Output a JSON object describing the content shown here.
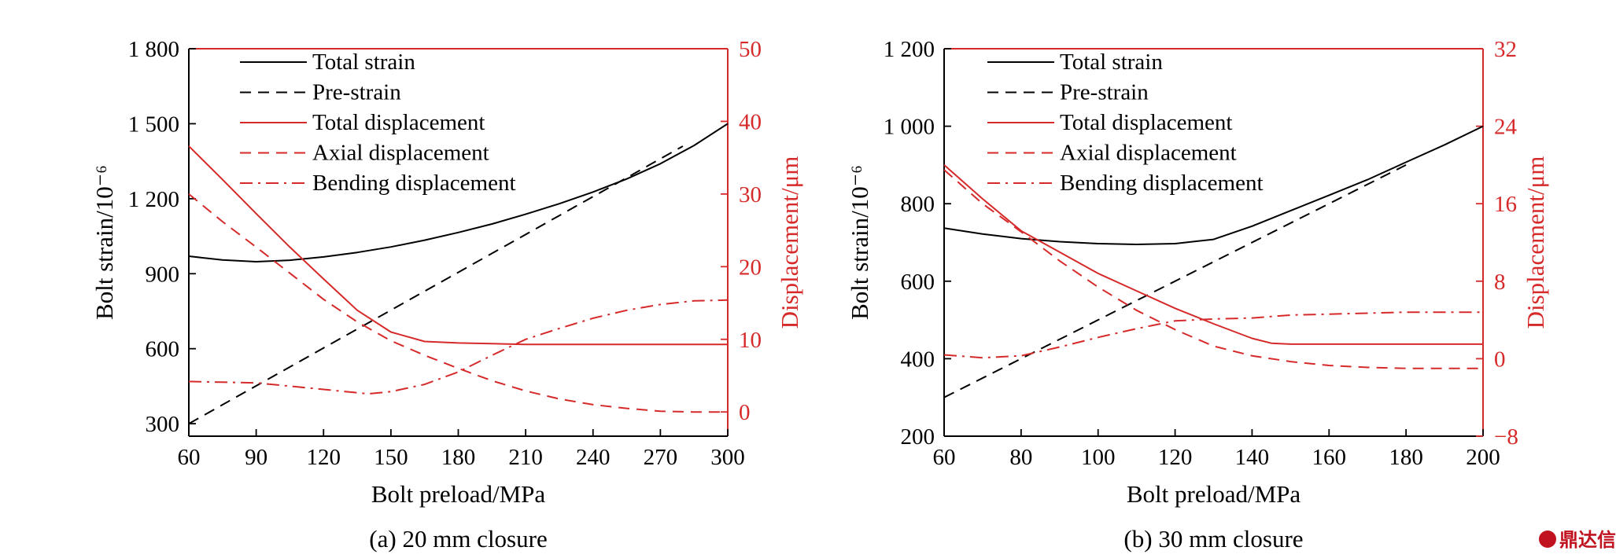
{
  "watermark": {
    "text": "鼎达信",
    "color": "#c1121f"
  },
  "colors": {
    "black": "#000000",
    "red": "#d62a2a"
  },
  "chart_data": [
    {
      "type": "line",
      "caption": "(a) 20 mm closure",
      "xlabel": "Bolt preload/MPa",
      "ylabel_left": "Bolt strain/10⁻⁶",
      "ylabel_right": "Displacement/μm",
      "xlim": [
        60,
        300
      ],
      "ylim_left": [
        250,
        1800
      ],
      "ylim_right": [
        -3.333,
        50
      ],
      "x_ticks": [
        "60",
        "90",
        "120",
        "150",
        "180",
        "210",
        "240",
        "270",
        "300"
      ],
      "y_left_ticks": [
        "300",
        "600",
        "900",
        "1 200",
        "1 500",
        "1 800"
      ],
      "y_right_ticks": [
        "0",
        "10",
        "20",
        "30",
        "40",
        "50"
      ],
      "legend_position": "top-left",
      "series": [
        {
          "name": "Total strain",
          "axis": "left",
          "color": "black",
          "dash": "solid",
          "x": [
            60,
            75,
            90,
            105,
            120,
            135,
            150,
            165,
            180,
            195,
            210,
            225,
            240,
            255,
            270,
            285,
            300
          ],
          "y": [
            970,
            955,
            948,
            954,
            967,
            985,
            1007,
            1034,
            1065,
            1099,
            1138,
            1180,
            1227,
            1279,
            1340,
            1413,
            1500
          ]
        },
        {
          "name": "Pre-strain",
          "axis": "left",
          "color": "black",
          "dash": "dash",
          "x": [
            60,
            280
          ],
          "y": [
            300,
            1410
          ]
        },
        {
          "name": "Total displacement",
          "axis": "right",
          "color": "red",
          "dash": "solid",
          "x": [
            60,
            75,
            90,
            105,
            120,
            135,
            150,
            165,
            180,
            195,
            210,
            240,
            270,
            300
          ],
          "y": [
            36.6,
            32.0,
            27.3,
            22.7,
            18.3,
            14.0,
            11.0,
            9.7,
            9.5,
            9.4,
            9.3,
            9.3,
            9.3,
            9.3
          ]
        },
        {
          "name": "Axial displacement",
          "axis": "right",
          "color": "red",
          "dash": "dash",
          "x": [
            60,
            75,
            90,
            105,
            120,
            135,
            150,
            165,
            180,
            195,
            210,
            225,
            240,
            255,
            270,
            285,
            300
          ],
          "y": [
            30.0,
            26.2,
            22.7,
            19.1,
            15.5,
            12.4,
            9.8,
            7.8,
            6.0,
            4.3,
            2.9,
            1.8,
            1.0,
            0.5,
            0.1,
            0.0,
            0.0
          ]
        },
        {
          "name": "Bending displacement",
          "axis": "right",
          "color": "red",
          "dash": "dashdot",
          "x": [
            60,
            90,
            120,
            140,
            150,
            165,
            180,
            195,
            210,
            225,
            240,
            255,
            270,
            285,
            300
          ],
          "y": [
            4.2,
            4.0,
            3.1,
            2.5,
            2.8,
            3.8,
            5.5,
            7.8,
            10.0,
            11.5,
            12.9,
            14.0,
            14.8,
            15.3,
            15.4
          ]
        }
      ]
    },
    {
      "type": "line",
      "caption": "(b) 30 mm closure",
      "xlabel": "Bolt preload/MPa",
      "ylabel_left": "Bolt strain/10⁻⁶",
      "ylabel_right": "Displacement/μm",
      "xlim": [
        60,
        200
      ],
      "ylim_left": [
        200,
        1200
      ],
      "ylim_right": [
        -8,
        32
      ],
      "x_ticks": [
        "60",
        "80",
        "100",
        "120",
        "140",
        "160",
        "180",
        "200"
      ],
      "y_left_ticks": [
        "200",
        "400",
        "600",
        "800",
        "1 000",
        "1 200"
      ],
      "y_right_ticks": [
        "−8",
        "0",
        "8",
        "16",
        "24",
        "32"
      ],
      "legend_position": "top-left",
      "series": [
        {
          "name": "Total strain",
          "axis": "left",
          "color": "black",
          "dash": "solid",
          "x": [
            60,
            70,
            80,
            90,
            100,
            110,
            120,
            130,
            140,
            150,
            160,
            170,
            180,
            190,
            200
          ],
          "y": [
            737,
            722,
            710,
            702,
            697,
            695,
            697,
            708,
            742,
            782,
            822,
            862,
            907,
            952,
            1000
          ]
        },
        {
          "name": "Pre-strain",
          "axis": "left",
          "color": "black",
          "dash": "dash",
          "x": [
            60,
            180
          ],
          "y": [
            300,
            900
          ]
        },
        {
          "name": "Total displacement",
          "axis": "right",
          "color": "red",
          "dash": "solid",
          "x": [
            60,
            70,
            80,
            90,
            100,
            110,
            120,
            130,
            140,
            145,
            150,
            160,
            180,
            200
          ],
          "y": [
            20.0,
            16.5,
            13.2,
            11.0,
            8.8,
            7.0,
            5.2,
            3.6,
            2.1,
            1.6,
            1.5,
            1.5,
            1.5,
            1.5
          ]
        },
        {
          "name": "Axial displacement",
          "axis": "right",
          "color": "red",
          "dash": "dash",
          "x": [
            60,
            70,
            80,
            90,
            100,
            110,
            120,
            130,
            140,
            150,
            160,
            170,
            180,
            190,
            200
          ],
          "y": [
            19.5,
            16.0,
            13.1,
            10.1,
            7.4,
            5.0,
            3.0,
            1.3,
            0.3,
            -0.3,
            -0.7,
            -0.9,
            -1.0,
            -1.0,
            -1.0
          ]
        },
        {
          "name": "Bending displacement",
          "axis": "right",
          "color": "red",
          "dash": "dashdot",
          "x": [
            60,
            70,
            80,
            90,
            100,
            110,
            120,
            130,
            140,
            150,
            160,
            170,
            180,
            200
          ],
          "y": [
            0.4,
            0.1,
            0.3,
            1.2,
            2.2,
            3.1,
            3.9,
            4.1,
            4.2,
            4.5,
            4.6,
            4.7,
            4.8,
            4.8
          ]
        }
      ]
    }
  ]
}
